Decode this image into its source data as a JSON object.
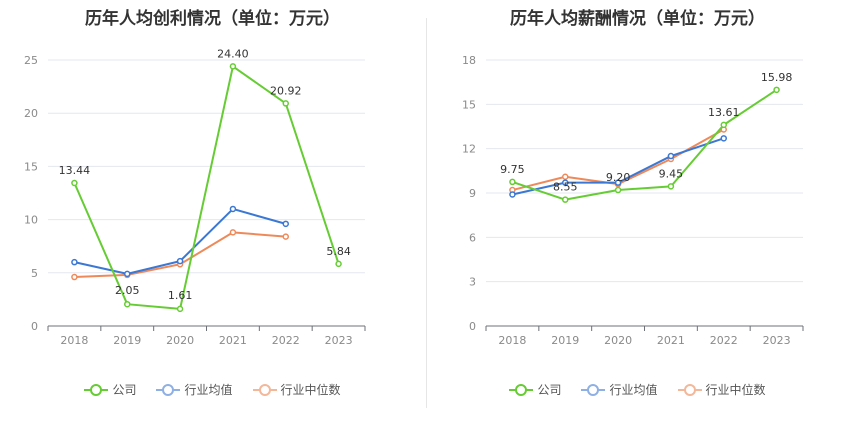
{
  "legend_labels": [
    "公司",
    "行业均值",
    "行业中位数"
  ],
  "series_colors": [
    "#66cc33",
    "#3a78d4",
    "#ee8a5a"
  ],
  "legend_colors": [
    "#66cc33",
    "#8fb0e4",
    "#f3b799"
  ],
  "chart_data": [
    {
      "type": "line",
      "title": "历年人均创利情况（单位：万元）",
      "xlabel": "",
      "ylabel": "",
      "categories": [
        "2018",
        "2019",
        "2020",
        "2021",
        "2022",
        "2023"
      ],
      "ylim": [
        0,
        25
      ],
      "yticks": [
        0,
        5,
        10,
        15,
        20,
        25
      ],
      "grid": true,
      "legend_position": "bottom",
      "series": [
        {
          "name": "公司",
          "values": [
            13.44,
            2.05,
            1.61,
            24.4,
            20.92,
            5.84
          ],
          "data_labels": [
            "13.44",
            "2.05",
            "1.61",
            "24.40",
            "20.92",
            "5.84"
          ]
        },
        {
          "name": "行业均值",
          "values": [
            6.0,
            4.9,
            6.1,
            11.0,
            9.6,
            null
          ]
        },
        {
          "name": "行业中位数",
          "values": [
            4.6,
            4.8,
            5.8,
            8.8,
            8.4,
            null
          ]
        }
      ]
    },
    {
      "type": "line",
      "title": "历年人均薪酬情况（单位：万元）",
      "xlabel": "",
      "ylabel": "",
      "categories": [
        "2018",
        "2019",
        "2020",
        "2021",
        "2022",
        "2023"
      ],
      "ylim": [
        0,
        18
      ],
      "yticks": [
        0,
        3,
        6,
        9,
        12,
        15,
        18
      ],
      "grid": true,
      "legend_position": "bottom",
      "series": [
        {
          "name": "公司",
          "values": [
            9.75,
            8.55,
            9.2,
            9.45,
            13.61,
            15.98
          ],
          "data_labels": [
            "9.75",
            "8.55",
            "9.20",
            "9.45",
            "13.61",
            "15.98"
          ]
        },
        {
          "name": "行业均值",
          "values": [
            8.9,
            9.7,
            9.7,
            11.5,
            12.7,
            null
          ]
        },
        {
          "name": "行业中位数",
          "values": [
            9.2,
            10.1,
            9.6,
            11.3,
            13.3,
            null
          ]
        }
      ]
    }
  ]
}
